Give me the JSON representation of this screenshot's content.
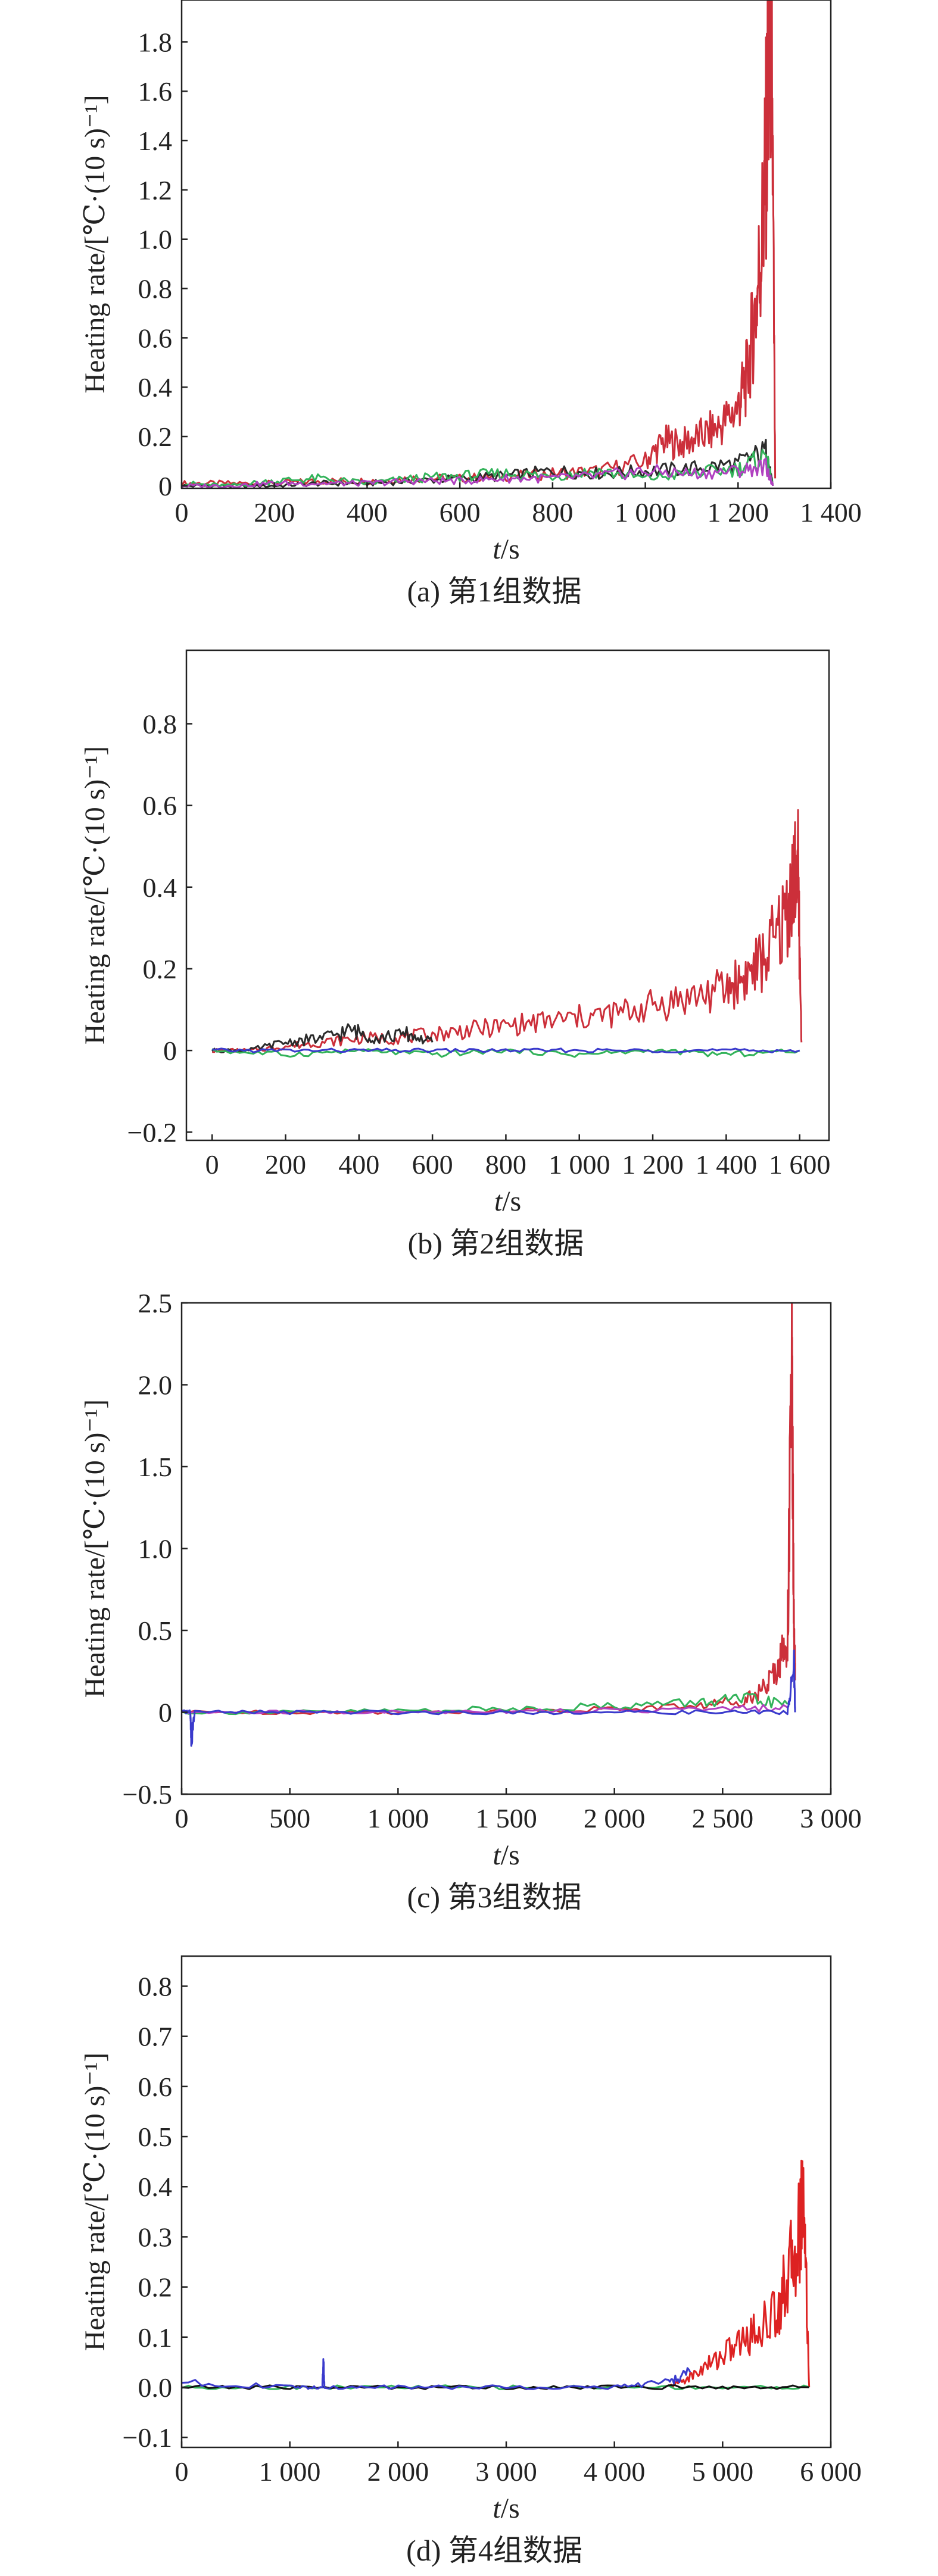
{
  "chart_data": [
    {
      "type": "line",
      "caption": "(a) 第1组数据",
      "xlabel_main": "t",
      "xlabel_unit": "/s",
      "ylabel": "Heating rate/[℃·(10 s)⁻¹]",
      "xlim": [
        0,
        1400
      ],
      "ylim": [
        -0.01,
        1.97
      ],
      "xticks": [
        0,
        200,
        400,
        600,
        800,
        1000,
        1200,
        1400
      ],
      "xtick_labels": [
        "0",
        "200",
        "400",
        "600",
        "800",
        "1 000",
        "1 200",
        "1 400"
      ],
      "yticks": [
        0,
        0.2,
        0.4,
        0.6,
        0.8,
        1.0,
        1.2,
        1.4,
        1.6,
        1.8
      ],
      "ytick_labels": [
        "0",
        "0.2",
        "0.4",
        "0.6",
        "0.8",
        "1.0",
        "1.2",
        "1.4",
        "1.6",
        "1.8"
      ],
      "series": [
        {
          "color": "#cc2f3a",
          "x": [
            0,
            100,
            200,
            300,
            400,
            500,
            600,
            700,
            800,
            900,
            1000,
            1040,
            1080,
            1120,
            1160,
            1200,
            1220,
            1240,
            1255,
            1265,
            1272,
            1280
          ],
          "y": [
            0.01,
            0.01,
            0.01,
            0.02,
            0.02,
            0.03,
            0.03,
            0.04,
            0.05,
            0.06,
            0.1,
            0.18,
            0.17,
            0.2,
            0.24,
            0.32,
            0.45,
            0.75,
            1.1,
            1.6,
            1.95,
            0.03
          ]
        },
        {
          "color": "#2b2b2b",
          "x": [
            0,
            100,
            200,
            300,
            400,
            500,
            600,
            700,
            800,
            900,
            1000,
            1100,
            1200,
            1260,
            1275
          ],
          "y": [
            0.0,
            0.0,
            0.0,
            0.01,
            0.01,
            0.02,
            0.03,
            0.04,
            0.06,
            0.05,
            0.06,
            0.07,
            0.09,
            0.14,
            0.0
          ]
        },
        {
          "color": "#33b35a",
          "x": [
            0,
            100,
            200,
            300,
            400,
            500,
            600,
            700,
            800,
            900,
            1000,
            1100,
            1200,
            1260,
            1275
          ],
          "y": [
            0.01,
            0.0,
            0.02,
            0.03,
            0.01,
            0.03,
            0.04,
            0.05,
            0.04,
            0.06,
            0.03,
            0.05,
            0.07,
            0.12,
            0.0
          ]
        },
        {
          "color": "#b040c0",
          "x": [
            0,
            100,
            200,
            300,
            400,
            500,
            600,
            700,
            800,
            900,
            1000,
            1100,
            1200,
            1260,
            1275
          ],
          "y": [
            0.0,
            0.0,
            0.01,
            0.01,
            0.01,
            0.02,
            0.02,
            0.03,
            0.03,
            0.04,
            0.06,
            0.05,
            0.06,
            0.08,
            0.0
          ]
        }
      ]
    },
    {
      "type": "line",
      "caption": "(b) 第2组数据",
      "xlabel_main": "t",
      "xlabel_unit": "/s",
      "ylabel": "Heating rate/[℃·(10 s)⁻¹]",
      "xlim": [
        -70,
        1680
      ],
      "ylim": [
        -0.22,
        0.98
      ],
      "xticks": [
        0,
        200,
        400,
        600,
        800,
        1000,
        1200,
        1400,
        1600
      ],
      "xtick_labels": [
        "0",
        "200",
        "400",
        "600",
        "800",
        "1 000",
        "1 200",
        "1 400",
        "1 600"
      ],
      "yticks": [
        -0.2,
        0,
        0.2,
        0.4,
        0.6,
        0.8
      ],
      "ytick_labels": [
        "−0.2",
        "0",
        "0.2",
        "0.4",
        "0.6",
        "0.8"
      ],
      "series": [
        {
          "color": "#cc2f3a",
          "x": [
            0,
            100,
            200,
            300,
            400,
            500,
            600,
            700,
            800,
            900,
            1000,
            1100,
            1200,
            1300,
            1400,
            1450,
            1500,
            1550,
            1580,
            1595,
            1605
          ],
          "y": [
            0.0,
            0.0,
            0.01,
            0.02,
            0.03,
            0.03,
            0.04,
            0.05,
            0.06,
            0.07,
            0.08,
            0.09,
            0.11,
            0.13,
            0.15,
            0.18,
            0.22,
            0.3,
            0.4,
            0.46,
            0.02
          ]
        },
        {
          "color": "#2b2b2b",
          "x": [
            0,
            100,
            200,
            300,
            380,
            450,
            530,
            600
          ],
          "y": [
            0.0,
            0.0,
            0.02,
            0.03,
            0.05,
            0.03,
            0.04,
            0.02
          ]
        },
        {
          "color": "#33b35a",
          "x": [
            0,
            200,
            400,
            600,
            800,
            1000,
            1200,
            1400,
            1600
          ],
          "y": [
            0.0,
            -0.01,
            0.0,
            -0.01,
            0.0,
            -0.01,
            0.0,
            -0.01,
            0.0
          ]
        },
        {
          "color": "#3a3acc",
          "x": [
            0,
            200,
            400,
            600,
            800,
            1000,
            1200,
            1400,
            1600
          ],
          "y": [
            0.0,
            0.0,
            0.0,
            0.0,
            0.0,
            0.0,
            0.0,
            0.0,
            0.0
          ]
        }
      ]
    },
    {
      "type": "line",
      "caption": "(c) 第3组数据",
      "xlabel_main": "t",
      "xlabel_unit": "/s",
      "ylabel": "Heating rate/[℃·(10 s)⁻¹]",
      "xlim": [
        0,
        3000
      ],
      "ylim": [
        -0.5,
        2.5
      ],
      "xticks": [
        0,
        500,
        1000,
        1500,
        2000,
        2500,
        3000
      ],
      "xtick_labels": [
        "0",
        "500",
        "1 000",
        "1 500",
        "2 000",
        "2 500",
        "3 000"
      ],
      "yticks": [
        -0.5,
        0,
        0.5,
        1.0,
        1.5,
        2.0,
        2.5
      ],
      "ytick_labels": [
        "−0.5",
        "0",
        "0.5",
        "1.0",
        "1.5",
        "2.0",
        "2.5"
      ],
      "series": [
        {
          "color": "#cc2f3a",
          "x": [
            0,
            500,
            1000,
            1500,
            2000,
            2400,
            2600,
            2700,
            2760,
            2800,
            2820,
            2830,
            2835
          ],
          "y": [
            0.0,
            0.0,
            0.0,
            0.01,
            0.02,
            0.04,
            0.08,
            0.15,
            0.3,
            0.45,
            2.1,
            0.4,
            0.3
          ]
        },
        {
          "color": "#33b35a",
          "x": [
            0,
            500,
            1000,
            1500,
            2000,
            2400,
            2600,
            2800
          ],
          "y": [
            0.0,
            0.0,
            0.01,
            0.02,
            0.04,
            0.06,
            0.08,
            0.05
          ]
        },
        {
          "color": "#b040c0",
          "x": [
            0,
            500,
            1000,
            1500,
            2000,
            2500,
            2800
          ],
          "y": [
            0.0,
            0.0,
            0.0,
            0.01,
            0.01,
            0.02,
            0.03
          ]
        },
        {
          "color": "#3a3acc",
          "x": [
            0,
            40,
            45,
            60,
            500,
            1000,
            1500,
            2000,
            2500,
            2800,
            2830,
            2835
          ],
          "y": [
            0.0,
            0.0,
            -0.17,
            0.0,
            0.0,
            0.0,
            0.0,
            0.0,
            0.0,
            0.0,
            0.28,
            0.0
          ]
        }
      ]
    },
    {
      "type": "line",
      "caption": "(d) 第4组数据",
      "xlabel_main": "t",
      "xlabel_unit": "/s",
      "ylabel": "Heating rate/[℃·(10 s)⁻¹]",
      "xlim": [
        0,
        6000
      ],
      "ylim": [
        -0.12,
        0.86
      ],
      "xticks": [
        0,
        1000,
        2000,
        3000,
        4000,
        5000,
        6000
      ],
      "xtick_labels": [
        "0",
        "1 000",
        "2 000",
        "3 000",
        "4 000",
        "5 000",
        "6 000"
      ],
      "yticks": [
        -0.1,
        0,
        0.1,
        0.2,
        0.3,
        0.4,
        0.5,
        0.6,
        0.7,
        0.8
      ],
      "ytick_labels": [
        "−0.1",
        "0.0",
        "0.1",
        "0.2",
        "0.3",
        "0.4",
        "0.5",
        "0.6",
        "0.7",
        "0.8"
      ],
      "series": [
        {
          "color": "#dd2222",
          "x": [
            4500,
            4700,
            4900,
            5100,
            5300,
            5500,
            5600,
            5700,
            5750,
            5800
          ],
          "y": [
            0.0,
            0.02,
            0.05,
            0.08,
            0.11,
            0.15,
            0.22,
            0.3,
            0.4,
            0.0
          ]
        },
        {
          "color": "#33b35a",
          "x": [
            0,
            1000,
            2000,
            3000,
            4000,
            5000,
            5800
          ],
          "y": [
            0.0,
            0.0,
            0.0,
            0.0,
            0.0,
            0.0,
            0.0
          ]
        },
        {
          "color": "#111111",
          "x": [
            0,
            1000,
            2000,
            3000,
            4000,
            5000,
            5800
          ],
          "y": [
            0.0,
            0.0,
            0.0,
            0.0,
            0.0,
            0.0,
            0.0
          ]
        },
        {
          "color": "#3a3acc",
          "x": [
            0,
            1000,
            1300,
            1310,
            1320,
            2000,
            3000,
            4000,
            4500,
            4700
          ],
          "y": [
            0.01,
            0.0,
            0.0,
            0.05,
            0.0,
            0.0,
            0.0,
            0.0,
            0.01,
            0.03
          ]
        }
      ]
    }
  ]
}
